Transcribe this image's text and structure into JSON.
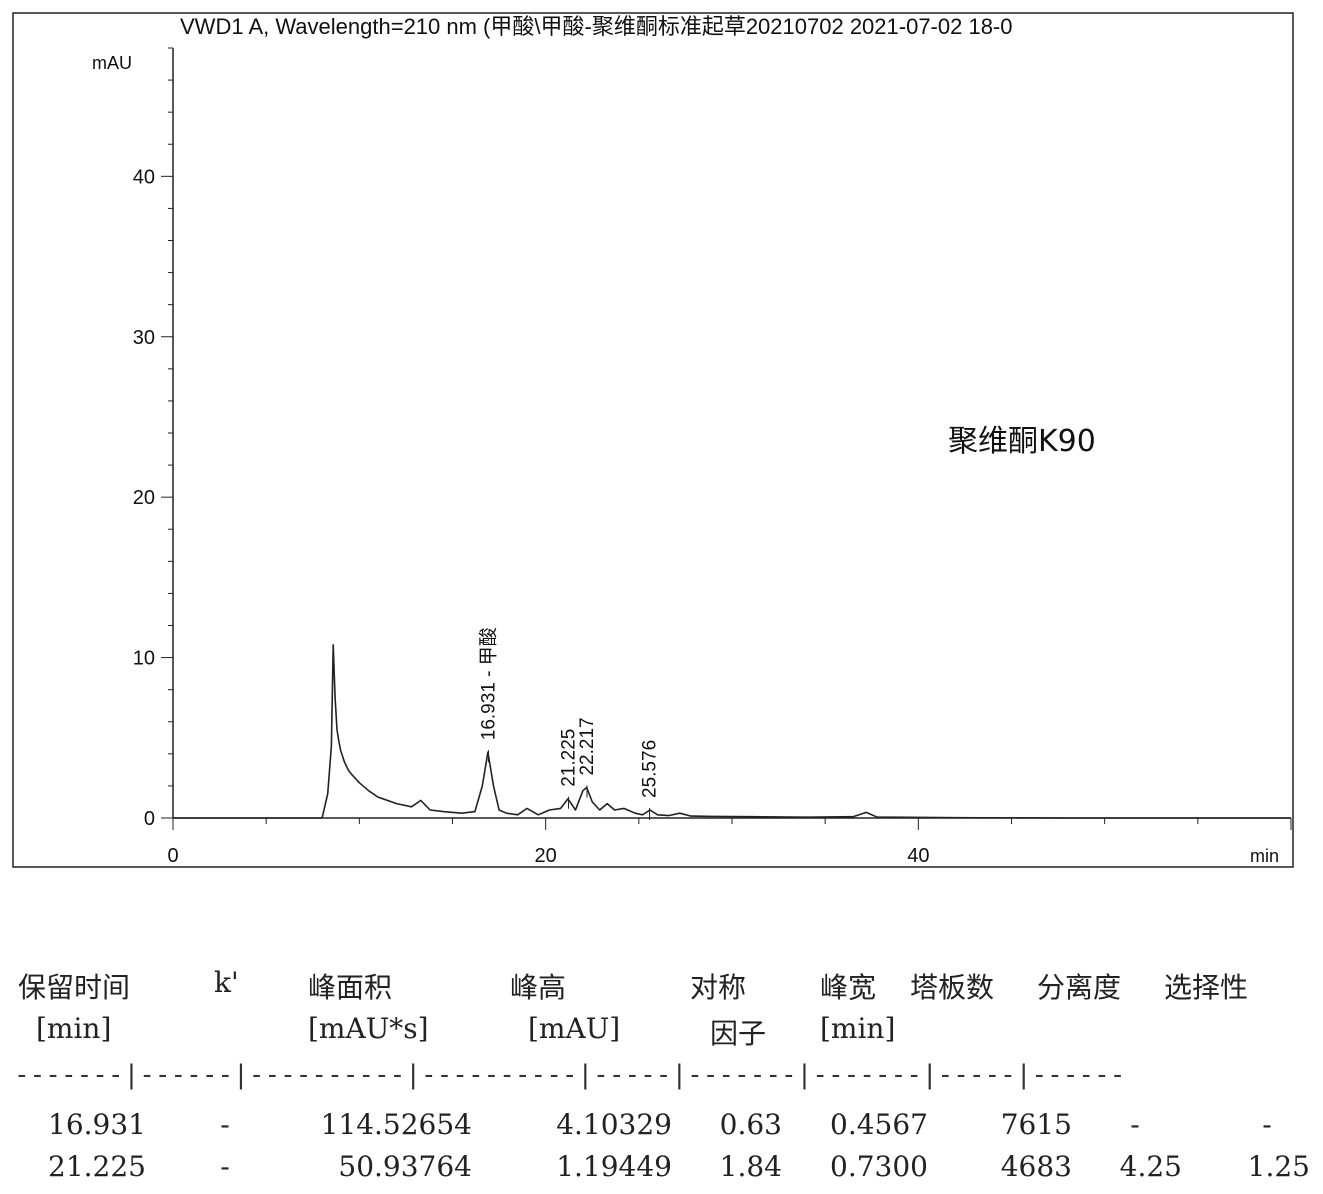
{
  "chart_data": {
    "type": "line",
    "title": "VWD1 A, Wavelength=210 nm (甲酸\\甲酸-聚维酮标准起草20210702 2021-07-02 18-0",
    "ylabel": "mAU",
    "xlabel": "min",
    "xlim": [
      0,
      60
    ],
    "ylim": [
      0,
      48
    ],
    "xticks": [
      0,
      20,
      40
    ],
    "yticks": [
      0,
      10,
      20,
      30,
      40
    ],
    "sample_label": "聚维酮K90",
    "peak_labels": [
      {
        "x": 16.931,
        "y": 4.1,
        "text": "16.931 - 甲酸"
      },
      {
        "x": 21.225,
        "y": 1.2,
        "text": "21.225"
      },
      {
        "x": 22.217,
        "y": 1.9,
        "text": "22.217"
      },
      {
        "x": 25.576,
        "y": 0.5,
        "text": "25.576"
      }
    ],
    "series": [
      {
        "x": [
          0,
          8.0,
          8.3,
          8.5,
          8.6,
          8.7,
          8.8,
          8.9,
          9.0,
          9.2,
          9.4,
          9.6,
          10.0,
          10.5,
          11.0,
          12.0,
          12.8,
          13.3,
          13.8,
          14.5,
          15.5,
          16.2,
          16.6,
          16.9,
          17.2,
          17.5,
          17.9,
          18.5,
          19.0,
          19.6,
          20.2,
          20.8,
          21.2,
          21.6,
          22.0,
          22.2,
          22.5,
          22.9,
          23.3,
          23.7,
          24.2,
          24.8,
          25.2,
          25.6,
          26.0,
          26.6,
          27.2,
          27.8,
          29.0,
          31.0,
          34.0,
          36.5,
          37.2,
          37.8,
          38.6,
          42.0,
          48.0,
          54.0,
          60.0
        ],
        "y": [
          0,
          0,
          1.5,
          4.5,
          10.8,
          7.5,
          5.5,
          4.8,
          4.2,
          3.5,
          3.0,
          2.7,
          2.2,
          1.7,
          1.3,
          0.9,
          0.7,
          1.1,
          0.5,
          0.4,
          0.3,
          0.4,
          2.0,
          4.1,
          2.0,
          0.5,
          0.3,
          0.2,
          0.6,
          0.2,
          0.5,
          0.6,
          1.2,
          0.5,
          1.7,
          1.9,
          1.0,
          0.5,
          0.9,
          0.5,
          0.6,
          0.3,
          0.2,
          0.5,
          0.2,
          0.15,
          0.3,
          0.12,
          0.1,
          0.08,
          0.05,
          0.08,
          0.35,
          0.05,
          0.05,
          0.02,
          0.0,
          0.0,
          0.0
        ]
      }
    ]
  },
  "table": {
    "headers": [
      {
        "line1": "保留时间",
        "line2": "[min]"
      },
      {
        "line1": "k'",
        "line2": ""
      },
      {
        "line1": "峰面积",
        "line2": "[mAU*s]"
      },
      {
        "line1": "峰高",
        "line2": "[mAU]"
      },
      {
        "line1": "对称",
        "line2": "因子"
      },
      {
        "line1": "峰宽",
        "line2": "[min]"
      },
      {
        "line1": "塔板数",
        "line2": ""
      },
      {
        "line1": "分离度",
        "line2": ""
      },
      {
        "line1": "选择性",
        "line2": ""
      }
    ],
    "separator": "-------|------|----------|----------|-----|-------|-------|-----|------",
    "rows": [
      [
        "16.931",
        "-",
        "114.52654",
        "4.10329",
        "0.63",
        "0.4567",
        "7615",
        "-",
        "-"
      ],
      [
        "21.225",
        "-",
        "50.93764",
        "1.19449",
        "1.84",
        "0.7300",
        "4683",
        "4.25",
        "1.25"
      ]
    ]
  }
}
